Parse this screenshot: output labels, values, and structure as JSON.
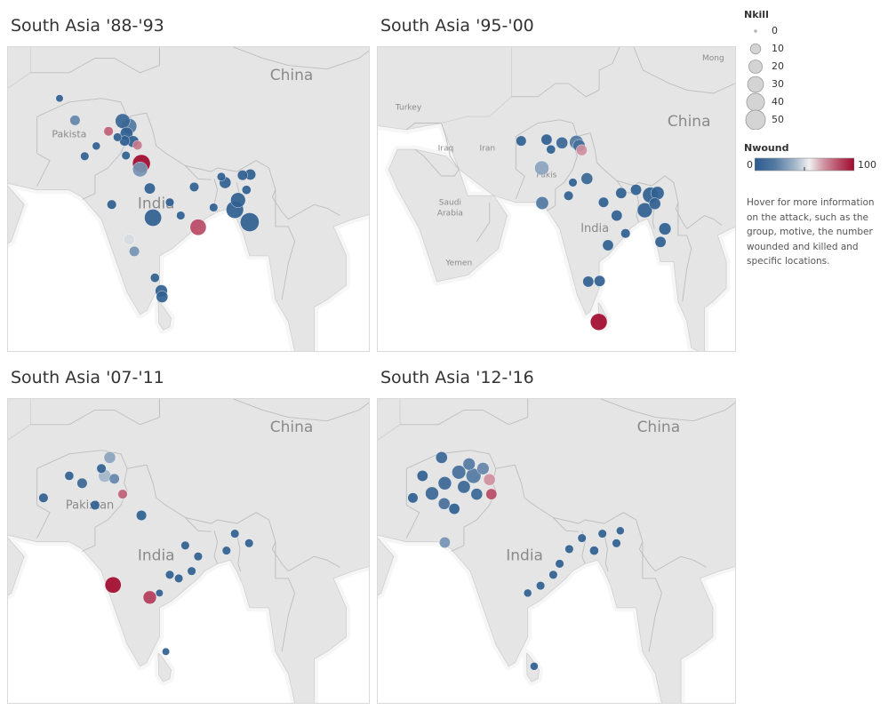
{
  "panels": [
    {
      "title": "South Asia '88-'93",
      "labels": [
        {
          "text": "China",
          "lon": 100.5,
          "lat": 40.0,
          "size": "large"
        },
        {
          "text": "Pakista",
          "lon": 66.0,
          "lat": 32.2,
          "size": "small"
        },
        {
          "text": "India",
          "lon": 79.5,
          "lat": 22.5,
          "size": "large"
        }
      ],
      "points": [
        {
          "lon": 74.8,
          "lat": 34.1,
          "nkill": 32,
          "nwound": 45
        },
        {
          "lon": 74.3,
          "lat": 34.4,
          "nkill": 25,
          "nwound": 10
        },
        {
          "lon": 75.3,
          "lat": 33.7,
          "nkill": 28,
          "nwound": 20
        },
        {
          "lon": 74.9,
          "lat": 32.7,
          "nkill": 18,
          "nwound": 5
        },
        {
          "lon": 75.9,
          "lat": 31.6,
          "nkill": 14,
          "nwound": 3
        },
        {
          "lon": 74.6,
          "lat": 31.7,
          "nkill": 10,
          "nwound": 2
        },
        {
          "lon": 77.2,
          "lat": 28.6,
          "nkill": 40,
          "nwound": 100
        },
        {
          "lon": 76.6,
          "lat": 31.1,
          "nkill": 8,
          "nwound": 75
        },
        {
          "lon": 77.0,
          "lat": 27.8,
          "nkill": 26,
          "nwound": 30
        },
        {
          "lon": 72.1,
          "lat": 33.0,
          "nkill": 8,
          "nwound": 80
        },
        {
          "lon": 66.9,
          "lat": 34.5,
          "nkill": 10,
          "nwound": 25
        },
        {
          "lon": 64.5,
          "lat": 37.5,
          "nkill": 4,
          "nwound": 5
        },
        {
          "lon": 79.0,
          "lat": 21.2,
          "nkill": 36,
          "nwound": 5
        },
        {
          "lon": 86.0,
          "lat": 19.9,
          "nkill": 32,
          "nwound": 85
        },
        {
          "lon": 75.3,
          "lat": 18.2,
          "nkill": 12,
          "nwound": 50
        },
        {
          "lon": 76.1,
          "lat": 16.6,
          "nkill": 10,
          "nwound": 30
        },
        {
          "lon": 91.7,
          "lat": 22.3,
          "nkill": 38,
          "nwound": 5
        },
        {
          "lon": 94.0,
          "lat": 20.6,
          "nkill": 45,
          "nwound": 5
        },
        {
          "lon": 92.2,
          "lat": 23.6,
          "nkill": 26,
          "nwound": 5
        },
        {
          "lon": 90.2,
          "lat": 26.0,
          "nkill": 14,
          "nwound": 5
        },
        {
          "lon": 94.1,
          "lat": 27.1,
          "nkill": 12,
          "nwound": 5
        },
        {
          "lon": 92.9,
          "lat": 27.0,
          "nkill": 10,
          "nwound": 5
        },
        {
          "lon": 80.3,
          "lat": 11.2,
          "nkill": 16,
          "nwound": 5
        },
        {
          "lon": 80.4,
          "lat": 10.4,
          "nkill": 14,
          "nwound": 5
        },
        {
          "lon": 78.5,
          "lat": 25.2,
          "nkill": 12,
          "nwound": 5
        },
        {
          "lon": 72.6,
          "lat": 23.0,
          "nkill": 8,
          "nwound": 5
        },
        {
          "lon": 73.5,
          "lat": 32.2,
          "nkill": 6,
          "nwound": 5
        },
        {
          "lon": 68.4,
          "lat": 29.6,
          "nkill": 6,
          "nwound": 5
        },
        {
          "lon": 79.3,
          "lat": 13.0,
          "nkill": 7,
          "nwound": 5
        },
        {
          "lon": 85.4,
          "lat": 25.4,
          "nkill": 8,
          "nwound": 5
        },
        {
          "lon": 83.3,
          "lat": 21.5,
          "nkill": 6,
          "nwound": 5
        },
        {
          "lon": 81.6,
          "lat": 23.3,
          "nkill": 6,
          "nwound": 5
        },
        {
          "lon": 88.4,
          "lat": 22.6,
          "nkill": 6,
          "nwound": 5
        },
        {
          "lon": 89.6,
          "lat": 26.8,
          "nkill": 6,
          "nwound": 5
        },
        {
          "lon": 93.5,
          "lat": 25.0,
          "nkill": 7,
          "nwound": 5
        },
        {
          "lon": 74.8,
          "lat": 29.7,
          "nkill": 6,
          "nwound": 5
        },
        {
          "lon": 70.2,
          "lat": 31.0,
          "nkill": 5,
          "nwound": 5
        }
      ]
    },
    {
      "title": "South Asia '95-'00",
      "labels": [
        {
          "text": "China",
          "lon": 100.5,
          "lat": 36.5,
          "size": "large"
        },
        {
          "text": "Turkey",
          "lon": 36.5,
          "lat": 39.0,
          "size": "tiny"
        },
        {
          "text": "Iraq",
          "lon": 45.0,
          "lat": 32.8,
          "size": "tiny"
        },
        {
          "text": "Iran",
          "lon": 54.5,
          "lat": 32.8,
          "size": "tiny"
        },
        {
          "text": "Saudi",
          "lon": 46.0,
          "lat": 24.6,
          "size": "tiny"
        },
        {
          "text": "Arabia",
          "lon": 46.0,
          "lat": 23.0,
          "size": "tiny"
        },
        {
          "text": "Pakis",
          "lon": 68.0,
          "lat": 28.8,
          "size": "tiny"
        },
        {
          "text": "India",
          "lon": 79.0,
          "lat": 20.5,
          "size": "medium"
        },
        {
          "text": "Yemen",
          "lon": 48.0,
          "lat": 15.5,
          "size": "tiny"
        },
        {
          "text": "Mong",
          "lon": 106.0,
          "lat": 46.5,
          "size": "tiny"
        }
      ],
      "points": [
        {
          "lon": 74.8,
          "lat": 34.1,
          "nkill": 22,
          "nwound": 20
        },
        {
          "lon": 75.4,
          "lat": 33.6,
          "nkill": 16,
          "nwound": 15
        },
        {
          "lon": 76.0,
          "lat": 32.9,
          "nkill": 12,
          "nwound": 70
        },
        {
          "lon": 77.2,
          "lat": 28.6,
          "nkill": 14,
          "nwound": 10
        },
        {
          "lon": 66.9,
          "lat": 30.2,
          "nkill": 24,
          "nwound": 35
        },
        {
          "lon": 71.5,
          "lat": 34.0,
          "nkill": 14,
          "nwound": 10
        },
        {
          "lon": 67.0,
          "lat": 24.9,
          "nkill": 18,
          "nwound": 20
        },
        {
          "lon": 68.0,
          "lat": 34.5,
          "nkill": 12,
          "nwound": 5
        },
        {
          "lon": 62.2,
          "lat": 34.3,
          "nkill": 10,
          "nwound": 5
        },
        {
          "lon": 79.9,
          "lat": 6.9,
          "nkill": 34,
          "nwound": 100
        },
        {
          "lon": 91.7,
          "lat": 26.1,
          "nkill": 30,
          "nwound": 5
        },
        {
          "lon": 90.4,
          "lat": 23.8,
          "nkill": 26,
          "nwound": 5
        },
        {
          "lon": 93.3,
          "lat": 26.4,
          "nkill": 20,
          "nwound": 5
        },
        {
          "lon": 88.4,
          "lat": 26.9,
          "nkill": 12,
          "nwound": 5
        },
        {
          "lon": 92.7,
          "lat": 24.8,
          "nkill": 14,
          "nwound": 5
        },
        {
          "lon": 95.0,
          "lat": 21.0,
          "nkill": 16,
          "nwound": 5
        },
        {
          "lon": 94.0,
          "lat": 19.0,
          "nkill": 12,
          "nwound": 5
        },
        {
          "lon": 80.1,
          "lat": 13.1,
          "nkill": 12,
          "nwound": 5
        },
        {
          "lon": 82.0,
          "lat": 18.5,
          "nkill": 12,
          "nwound": 5
        },
        {
          "lon": 77.5,
          "lat": 13.0,
          "nkill": 12,
          "nwound": 5
        },
        {
          "lon": 84.0,
          "lat": 23.0,
          "nkill": 12,
          "nwound": 5
        },
        {
          "lon": 81.0,
          "lat": 25.0,
          "nkill": 10,
          "nwound": 5
        },
        {
          "lon": 86.0,
          "lat": 20.3,
          "nkill": 8,
          "nwound": 5
        },
        {
          "lon": 73.0,
          "lat": 26.0,
          "nkill": 8,
          "nwound": 5
        },
        {
          "lon": 85.0,
          "lat": 26.4,
          "nkill": 12,
          "nwound": 5
        },
        {
          "lon": 74.0,
          "lat": 28.0,
          "nkill": 6,
          "nwound": 5
        },
        {
          "lon": 69.0,
          "lat": 33.0,
          "nkill": 7,
          "nwound": 5
        }
      ]
    },
    {
      "title": "South Asia '07-'11",
      "labels": [
        {
          "text": "China",
          "lon": 100.5,
          "lat": 40.0,
          "size": "large"
        },
        {
          "text": "Pakistan",
          "lon": 69.2,
          "lat": 29.5,
          "size": "medium"
        },
        {
          "text": "India",
          "lon": 79.5,
          "lat": 22.5,
          "size": "large"
        }
      ],
      "points": [
        {
          "lon": 71.5,
          "lat": 34.0,
          "nkill": 18,
          "nwound": 40
        },
        {
          "lon": 72.3,
          "lat": 36.5,
          "nkill": 14,
          "nwound": 35
        },
        {
          "lon": 73.0,
          "lat": 33.6,
          "nkill": 10,
          "nwound": 25
        },
        {
          "lon": 74.3,
          "lat": 31.5,
          "nkill": 8,
          "nwound": 80
        },
        {
          "lon": 77.2,
          "lat": 28.6,
          "nkill": 10,
          "nwound": 5
        },
        {
          "lon": 72.8,
          "lat": 19.1,
          "nkill": 32,
          "nwound": 100
        },
        {
          "lon": 78.5,
          "lat": 17.4,
          "nkill": 20,
          "nwound": 88
        },
        {
          "lon": 68.0,
          "lat": 33.0,
          "nkill": 10,
          "nwound": 10
        },
        {
          "lon": 62.0,
          "lat": 31.0,
          "nkill": 8,
          "nwound": 5
        },
        {
          "lon": 70.0,
          "lat": 30.0,
          "nkill": 8,
          "nwound": 5
        },
        {
          "lon": 66.0,
          "lat": 34.0,
          "nkill": 7,
          "nwound": 5
        },
        {
          "lon": 71.0,
          "lat": 35.0,
          "nkill": 8,
          "nwound": 5
        },
        {
          "lon": 85.0,
          "lat": 21.0,
          "nkill": 6,
          "nwound": 5
        },
        {
          "lon": 83.0,
          "lat": 20.0,
          "nkill": 6,
          "nwound": 5
        },
        {
          "lon": 86.0,
          "lat": 23.0,
          "nkill": 6,
          "nwound": 5
        },
        {
          "lon": 84.0,
          "lat": 24.5,
          "nkill": 6,
          "nwound": 5
        },
        {
          "lon": 91.7,
          "lat": 26.1,
          "nkill": 6,
          "nwound": 5
        },
        {
          "lon": 93.9,
          "lat": 24.8,
          "nkill": 6,
          "nwound": 5
        },
        {
          "lon": 90.4,
          "lat": 23.8,
          "nkill": 6,
          "nwound": 5
        },
        {
          "lon": 81.6,
          "lat": 20.5,
          "nkill": 6,
          "nwound": 5
        },
        {
          "lon": 80.0,
          "lat": 18.0,
          "nkill": 4,
          "nwound": 5
        },
        {
          "lon": 81.0,
          "lat": 10.0,
          "nkill": 4,
          "nwound": 5
        }
      ]
    },
    {
      "title": "South Asia '12-'16",
      "labels": [
        {
          "text": "China",
          "lon": 100.5,
          "lat": 40.0,
          "size": "large"
        },
        {
          "text": "India",
          "lon": 79.5,
          "lat": 22.5,
          "size": "large"
        }
      ],
      "points": [
        {
          "lon": 71.5,
          "lat": 34.0,
          "nkill": 26,
          "nwound": 20
        },
        {
          "lon": 69.2,
          "lat": 34.5,
          "nkill": 22,
          "nwound": 15
        },
        {
          "lon": 67.0,
          "lat": 33.0,
          "nkill": 20,
          "nwound": 10
        },
        {
          "lon": 65.0,
          "lat": 31.6,
          "nkill": 20,
          "nwound": 10
        },
        {
          "lon": 70.0,
          "lat": 32.5,
          "nkill": 18,
          "nwound": 10
        },
        {
          "lon": 73.0,
          "lat": 35.0,
          "nkill": 16,
          "nwound": 25
        },
        {
          "lon": 74.0,
          "lat": 33.5,
          "nkill": 14,
          "nwound": 70
        },
        {
          "lon": 66.5,
          "lat": 36.5,
          "nkill": 14,
          "nwound": 10
        },
        {
          "lon": 63.5,
          "lat": 34.0,
          "nkill": 12,
          "nwound": 5
        },
        {
          "lon": 62.0,
          "lat": 31.0,
          "nkill": 10,
          "nwound": 5
        },
        {
          "lon": 68.5,
          "lat": 29.5,
          "nkill": 12,
          "nwound": 5
        },
        {
          "lon": 72.0,
          "lat": 31.5,
          "nkill": 14,
          "nwound": 10
        },
        {
          "lon": 74.3,
          "lat": 31.5,
          "nkill": 12,
          "nwound": 85
        },
        {
          "lon": 67.0,
          "lat": 24.9,
          "nkill": 12,
          "nwound": 30
        },
        {
          "lon": 66.9,
          "lat": 30.2,
          "nkill": 14,
          "nwound": 15
        },
        {
          "lon": 70.8,
          "lat": 35.6,
          "nkill": 16,
          "nwound": 20
        },
        {
          "lon": 85.0,
          "lat": 22.0,
          "nkill": 6,
          "nwound": 5
        },
        {
          "lon": 84.0,
          "lat": 20.5,
          "nkill": 6,
          "nwound": 5
        },
        {
          "lon": 82.0,
          "lat": 19.0,
          "nkill": 6,
          "nwound": 5
        },
        {
          "lon": 86.5,
          "lat": 24.0,
          "nkill": 6,
          "nwound": 5
        },
        {
          "lon": 91.7,
          "lat": 26.1,
          "nkill": 6,
          "nwound": 5
        },
        {
          "lon": 93.9,
          "lat": 24.8,
          "nkill": 6,
          "nwound": 5
        },
        {
          "lon": 90.4,
          "lat": 23.8,
          "nkill": 7,
          "nwound": 5
        },
        {
          "lon": 88.5,
          "lat": 25.5,
          "nkill": 6,
          "nwound": 5
        },
        {
          "lon": 94.5,
          "lat": 26.5,
          "nkill": 5,
          "nwound": 5
        },
        {
          "lon": 80.0,
          "lat": 18.0,
          "nkill": 5,
          "nwound": 5
        },
        {
          "lon": 81.0,
          "lat": 8.0,
          "nkill": 5,
          "nwound": 5
        }
      ]
    }
  ],
  "legend": {
    "size_title": "Nkill",
    "size_items": [
      0,
      10,
      20,
      30,
      40,
      50
    ],
    "color_title": "Nwound",
    "color_min": "0",
    "color_max": "100",
    "colors": {
      "low": "#2c5c8f",
      "mid": "#f0f0f0",
      "high": "#a10a2e"
    }
  },
  "hover_note": "Hover for more information on the attack, such as the group, motive, the number wounded and killed and specific locations."
}
